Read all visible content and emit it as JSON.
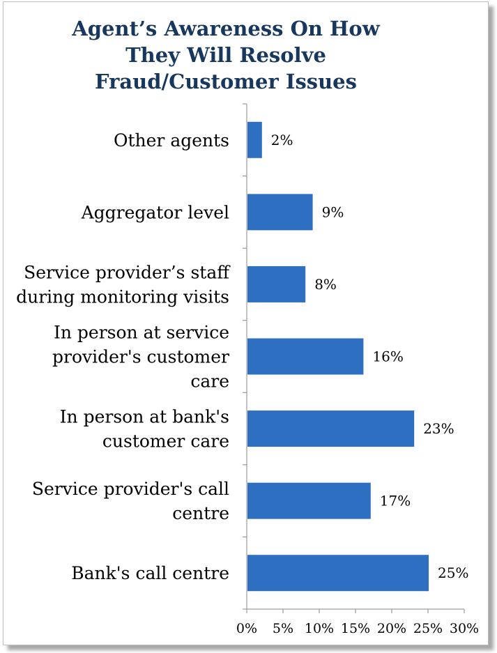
{
  "chart_data": {
    "type": "bar",
    "orientation": "horizontal",
    "title": "Agent’s Awareness On How\nThey Will Resolve\nFraud/Customer Issues",
    "categories": [
      "Other agents",
      "Aggregator level",
      "Service provider’s staff\nduring monitoring visits",
      "In person at service\nprovider's customer\ncare",
      "In person at bank's\ncustomer care",
      "Service provider's call\ncentre",
      "Bank's call centre"
    ],
    "values": [
      2,
      9,
      8,
      16,
      23,
      17,
      25
    ],
    "value_labels": [
      "2%",
      "9%",
      "8%",
      "16%",
      "23%",
      "17%",
      "25%"
    ],
    "xlim": [
      0,
      30
    ],
    "x_ticks": [
      0,
      5,
      10,
      15,
      20,
      25,
      30
    ],
    "x_tick_labels": [
      "0%",
      "5%",
      "10%",
      "15%",
      "20%",
      "25%",
      "30%"
    ],
    "grid": false,
    "legend": "none",
    "bar_color": "#2e6fc2",
    "title_color": "#17375e"
  }
}
